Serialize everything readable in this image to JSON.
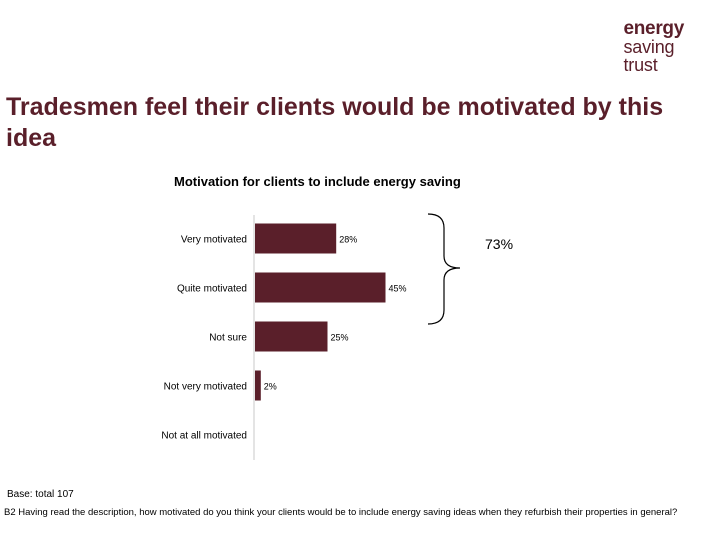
{
  "logo": {
    "line1": "energy",
    "line2": "saving",
    "line3": "trust"
  },
  "slide_title": "Tradesmen feel their clients would be motivated by this idea",
  "bracket_label": "73%",
  "footer": {
    "base": "Base: total 107",
    "question": "B2 Having read the description, how motivated do you think your clients would be to include energy saving ideas when they refurbish their properties in general?"
  },
  "colors": {
    "bar": "#5a1f2a",
    "title": "#5a1f2a"
  },
  "chart_data": {
    "type": "bar",
    "orientation": "horizontal",
    "title": "Motivation for clients to include energy saving",
    "categories": [
      "Very motivated",
      "Quite motivated",
      "Not sure",
      "Not very motivated",
      "Not at all motivated"
    ],
    "values": [
      28,
      45,
      25,
      2,
      0
    ],
    "value_labels": [
      "28%",
      "45%",
      "25%",
      "2%",
      ""
    ],
    "unit": "%",
    "xlim": [
      0,
      100
    ],
    "grid": false,
    "legend": "none"
  }
}
